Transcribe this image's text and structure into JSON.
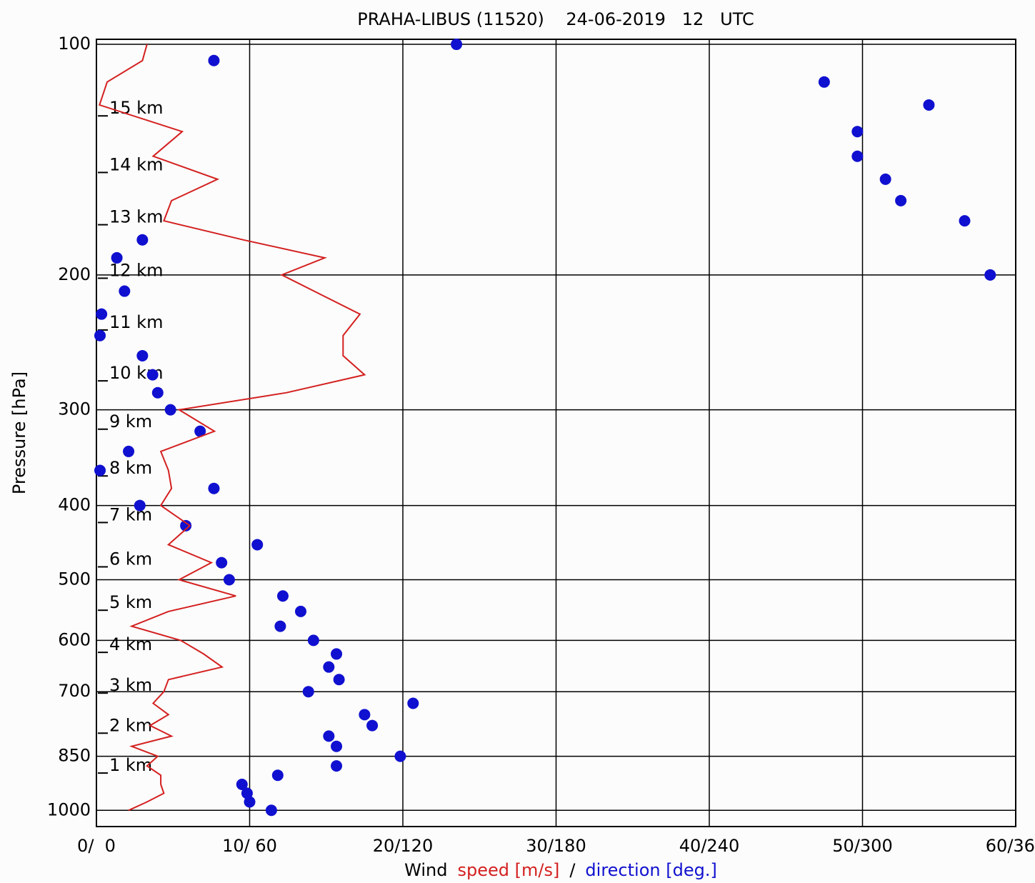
{
  "chart_data": {
    "type": "line",
    "title": "PRAHA-LIBUS (11520)    24-06-2019   12   UTC",
    "y_label": "Pressure [hPa]",
    "x_label_parts": [
      {
        "text": "Wind",
        "color": "#000000"
      },
      {
        "text": "speed [m/s]",
        "color": "#d42020"
      },
      {
        "text": "/",
        "color": "#000000"
      },
      {
        "text": "direction [deg.]",
        "color": "#1010d0"
      }
    ],
    "y_scale": "log",
    "grid": true,
    "ylim": [
      1050,
      98.5
    ],
    "yticks": [
      100,
      200,
      300,
      400,
      500,
      600,
      700,
      850,
      1000
    ],
    "xlim": [
      0,
      60
    ],
    "x2lim": [
      0,
      360
    ],
    "xticks": [
      {
        "value": 0,
        "label": "0/  0"
      },
      {
        "value": 10,
        "label": "10/ 60"
      },
      {
        "value": 20,
        "label": "20/120"
      },
      {
        "value": 30,
        "label": "30/180"
      },
      {
        "value": 40,
        "label": "40/240"
      },
      {
        "value": 50,
        "label": "50/300"
      },
      {
        "value": 60,
        "label": "60/360"
      }
    ],
    "height_labels": [
      {
        "label": "15 km",
        "pressure": 124
      },
      {
        "label": "14 km",
        "pressure": 147
      },
      {
        "label": "13 km",
        "pressure": 172
      },
      {
        "label": "12 km",
        "pressure": 202
      },
      {
        "label": "11 km",
        "pressure": 236
      },
      {
        "label": "10 km",
        "pressure": 275
      },
      {
        "label": "9 km",
        "pressure": 318
      },
      {
        "label": "8 km",
        "pressure": 366
      },
      {
        "label": "7 km",
        "pressure": 421
      },
      {
        "label": "6 km",
        "pressure": 481
      },
      {
        "label": "5 km",
        "pressure": 548
      },
      {
        "label": "4 km",
        "pressure": 622
      },
      {
        "label": "3 km",
        "pressure": 703
      },
      {
        "label": "2 km",
        "pressure": 793
      },
      {
        "label": "1 km",
        "pressure": 894
      }
    ],
    "pressure": [
      1000,
      975,
      950,
      925,
      900,
      875,
      850,
      825,
      800,
      775,
      750,
      725,
      700,
      675,
      650,
      625,
      600,
      575,
      550,
      525,
      500,
      475,
      450,
      425,
      400,
      380,
      360,
      340,
      320,
      300,
      285,
      270,
      255,
      240,
      225,
      210,
      200,
      190,
      180,
      170,
      160,
      150,
      140,
      130,
      120,
      112,
      105,
      100
    ],
    "series": [
      {
        "name": "speed",
        "color": "#d42020",
        "style": "line",
        "axis": "x",
        "values": [
          2.1,
          3.3,
          4.4,
          4.2,
          4.2,
          3.3,
          4.0,
          2.3,
          4.9,
          3.5,
          4.7,
          3.7,
          4.4,
          4.7,
          8.2,
          7.0,
          5.5,
          2.3,
          4.7,
          9.1,
          5.4,
          7.5,
          4.7,
          6.1,
          4.2,
          4.9,
          4.7,
          4.2,
          7.7,
          5.4,
          12.4,
          17.5,
          16.1,
          16.1,
          17.2,
          14.2,
          12.1,
          14.9,
          9.6,
          4.4,
          4.9,
          7.9,
          3.7,
          5.6,
          0.2,
          0.7,
          3.0,
          3.3
        ]
      },
      {
        "name": "direction",
        "color": "#1010d0",
        "style": "points",
        "axis": "x2",
        "values": [
          68.5,
          60,
          59,
          57,
          71,
          94,
          119,
          94,
          91,
          108,
          105,
          124,
          83,
          95,
          91,
          94,
          85,
          72,
          80,
          73,
          52,
          49,
          63,
          35,
          17,
          46,
          1.4,
          12.6,
          40.6,
          29,
          24,
          22,
          18,
          1.4,
          2,
          11,
          350,
          8,
          18,
          340,
          315,
          309,
          298,
          298,
          326,
          285,
          46,
          141
        ]
      }
    ]
  }
}
